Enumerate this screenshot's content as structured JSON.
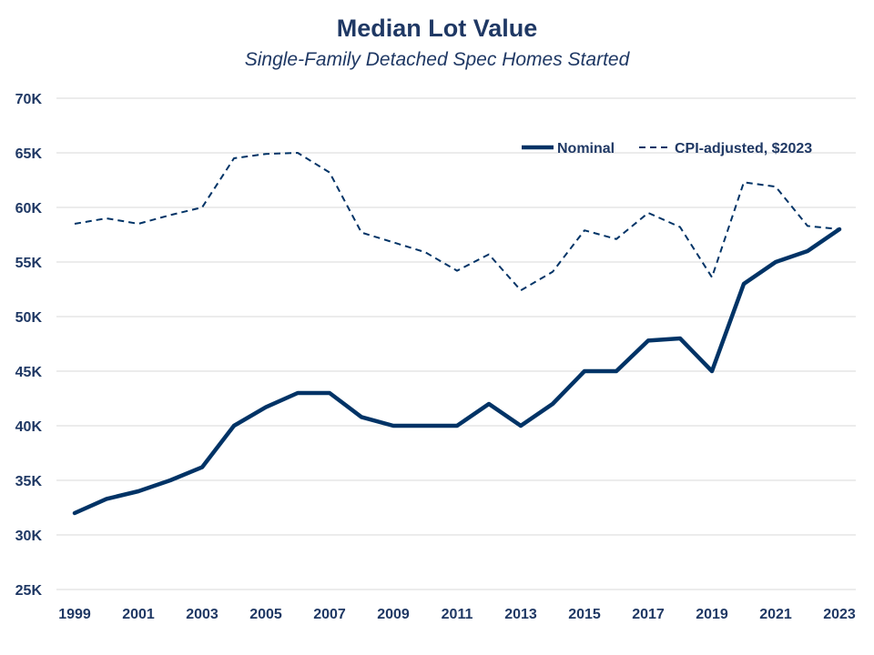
{
  "chart_data": {
    "type": "line",
    "title": "Median Lot Value",
    "subtitle": "Single-Family Detached Spec Homes Started",
    "x": [
      1999,
      2000,
      2001,
      2002,
      2003,
      2004,
      2005,
      2006,
      2007,
      2008,
      2009,
      2010,
      2011,
      2012,
      2013,
      2014,
      2015,
      2016,
      2017,
      2018,
      2019,
      2020,
      2021,
      2022,
      2023
    ],
    "x_tick_labels": [
      "1999",
      "2001",
      "2003",
      "2005",
      "2007",
      "2009",
      "2011",
      "2013",
      "2015",
      "2017",
      "2019",
      "2021",
      "2023"
    ],
    "x_tick_values": [
      1999,
      2001,
      2003,
      2005,
      2007,
      2009,
      2011,
      2013,
      2015,
      2017,
      2019,
      2021,
      2023
    ],
    "y_tick_labels": [
      "25K",
      "30K",
      "35K",
      "40K",
      "45K",
      "50K",
      "55K",
      "60K",
      "65K",
      "70K"
    ],
    "y_tick_values": [
      25000,
      30000,
      35000,
      40000,
      45000,
      50000,
      55000,
      60000,
      65000,
      70000
    ],
    "ylim": [
      25000,
      70000
    ],
    "xlim": [
      1999,
      2023
    ],
    "grid": "horizontal",
    "legend_position": "top-right",
    "series": [
      {
        "name": "Nominal",
        "style": "solid",
        "color": "#003366",
        "values": [
          32000,
          33300,
          34000,
          35000,
          36200,
          40000,
          41700,
          43000,
          43000,
          40800,
          40000,
          40000,
          40000,
          42000,
          40000,
          42000,
          45000,
          45000,
          47800,
          48000,
          45000,
          53000,
          55000,
          56000,
          58000
        ]
      },
      {
        "name": "CPI-adjusted, $2023",
        "style": "dashed",
        "color": "#003366",
        "values": [
          58500,
          59000,
          58500,
          59300,
          60000,
          64500,
          64900,
          65000,
          63200,
          57700,
          56800,
          55900,
          54200,
          55700,
          52400,
          54100,
          57900,
          57100,
          59500,
          58200,
          53600,
          62300,
          61900,
          58300,
          58000
        ]
      }
    ]
  }
}
